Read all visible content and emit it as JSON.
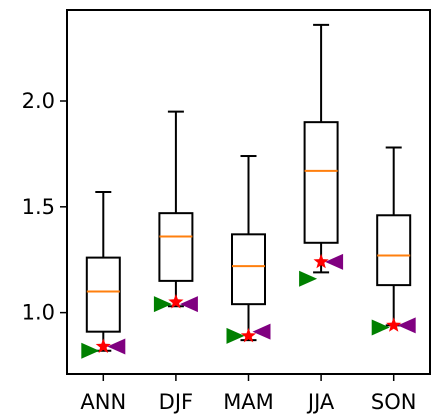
{
  "chart_data": {
    "type": "box",
    "title": "",
    "xlabel": "",
    "ylabel": "",
    "categories": [
      "ANN",
      "DJF",
      "MAM",
      "JJA",
      "SON"
    ],
    "ylim": [
      0.71,
      2.43
    ],
    "yticks": [
      1.0,
      1.5,
      2.0
    ],
    "ytick_labels": [
      "1.0",
      "1.5",
      "2.0"
    ],
    "grid": false,
    "boxes": [
      {
        "category": "ANN",
        "whisker_low": 0.82,
        "q1": 0.91,
        "median": 1.1,
        "q3": 1.26,
        "whisker_high": 1.57
      },
      {
        "category": "DJF",
        "whisker_low": 1.03,
        "q1": 1.15,
        "median": 1.36,
        "q3": 1.47,
        "whisker_high": 1.95
      },
      {
        "category": "MAM",
        "whisker_low": 0.87,
        "q1": 1.04,
        "median": 1.22,
        "q3": 1.37,
        "whisker_high": 1.74
      },
      {
        "category": "JJA",
        "whisker_low": 1.19,
        "q1": 1.33,
        "median": 1.67,
        "q3": 1.9,
        "whisker_high": 2.36
      },
      {
        "category": "SON",
        "whisker_low": 0.94,
        "q1": 1.13,
        "median": 1.27,
        "q3": 1.46,
        "whisker_high": 1.78
      }
    ],
    "markers": {
      "green_triangle_right": [
        0.82,
        1.04,
        0.89,
        1.16,
        0.93
      ],
      "red_star": [
        0.84,
        1.05,
        0.89,
        1.24,
        0.94
      ],
      "purple_triangle_left": [
        0.84,
        1.04,
        0.91,
        1.24,
        0.94
      ]
    },
    "colors": {
      "box": "#000000",
      "median": "#ff7f0e",
      "green_marker": "#008000",
      "red_marker": "#ff0000",
      "purple_marker": "#800080"
    }
  }
}
